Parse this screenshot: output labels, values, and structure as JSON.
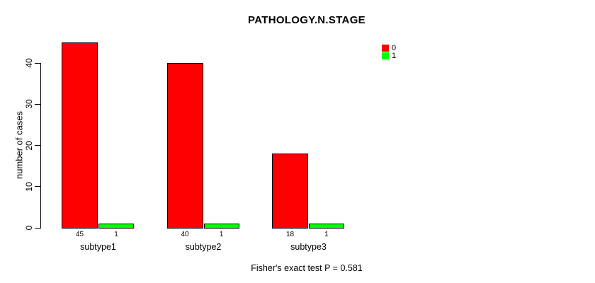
{
  "chart_data": {
    "type": "bar",
    "title": "PATHOLOGY.N.STAGE",
    "xlabel": "",
    "ylabel": "number of cases",
    "categories": [
      "subtype1",
      "subtype2",
      "subtype3"
    ],
    "series": [
      {
        "name": "0",
        "color": "#FF0000",
        "values": [
          45,
          40,
          18
        ]
      },
      {
        "name": "1",
        "color": "#00FF00",
        "values": [
          1,
          1,
          1
        ]
      }
    ],
    "yticks": [
      0,
      10,
      20,
      30,
      40
    ],
    "ylim": [
      0,
      45
    ],
    "grid": false,
    "legend_position": "top-right",
    "legend_entries": [
      {
        "label": "0",
        "color": "#FF0000"
      },
      {
        "label": "1",
        "color": "#00FF00"
      }
    ],
    "bar_value_labels": [
      [
        45,
        1
      ],
      [
        40,
        1
      ],
      [
        18,
        1
      ]
    ],
    "annotation": "Fisher's exact test P = 0.581",
    "colors": {
      "bar_border": "#000000",
      "text": "#000000",
      "background": "#FFFFFF"
    }
  }
}
